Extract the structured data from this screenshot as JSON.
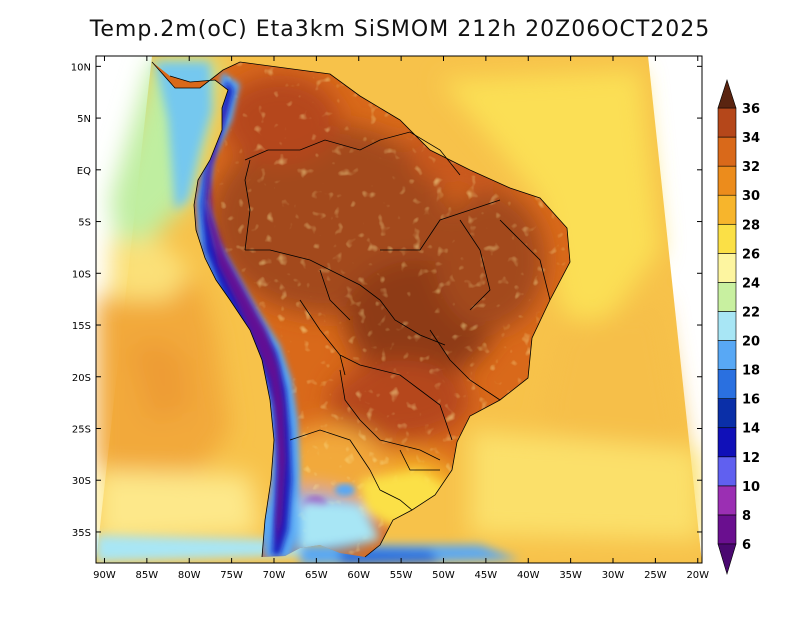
{
  "map": {
    "title": "Temp.2m(oC) Eta3km SiSMOM 212h 20Z06OCT2025",
    "variable": "2 m air temperature",
    "units": "oC",
    "lat_range": [
      -38,
      11
    ],
    "lon_range": [
      -91,
      -19.5
    ],
    "lat_ticks": [
      {
        "value": 10,
        "label": "10N"
      },
      {
        "value": 5,
        "label": "5N"
      },
      {
        "value": 0,
        "label": "EQ"
      },
      {
        "value": -5,
        "label": "5S"
      },
      {
        "value": -10,
        "label": "10S"
      },
      {
        "value": -15,
        "label": "15S"
      },
      {
        "value": -20,
        "label": "20S"
      },
      {
        "value": -25,
        "label": "25S"
      },
      {
        "value": -30,
        "label": "30S"
      },
      {
        "value": -35,
        "label": "35S"
      }
    ],
    "lon_ticks": [
      {
        "value": -90,
        "label": "90W"
      },
      {
        "value": -85,
        "label": "85W"
      },
      {
        "value": -80,
        "label": "80W"
      },
      {
        "value": -75,
        "label": "75W"
      },
      {
        "value": -70,
        "label": "70W"
      },
      {
        "value": -65,
        "label": "65W"
      },
      {
        "value": -60,
        "label": "60W"
      },
      {
        "value": -55,
        "label": "55W"
      },
      {
        "value": -50,
        "label": "50W"
      },
      {
        "value": -45,
        "label": "45W"
      },
      {
        "value": -40,
        "label": "40W"
      },
      {
        "value": -35,
        "label": "35W"
      },
      {
        "value": -30,
        "label": "30W"
      },
      {
        "value": -25,
        "label": "25W"
      },
      {
        "value": -20,
        "label": "20W"
      }
    ]
  },
  "colorbar": {
    "levels": [
      {
        "value": 6,
        "label": "6",
        "color": "#6a0f8f"
      },
      {
        "value": 8,
        "label": "8",
        "color": "#9b2fb3"
      },
      {
        "value": 10,
        "label": "10",
        "color": "#6060f0"
      },
      {
        "value": 12,
        "label": "12",
        "color": "#1010b8"
      },
      {
        "value": 14,
        "label": "14",
        "color": "#0a2fa8"
      },
      {
        "value": 16,
        "label": "16",
        "color": "#2a70e0"
      },
      {
        "value": 18,
        "label": "18",
        "color": "#58a8f5"
      },
      {
        "value": 20,
        "label": "20",
        "color": "#a8e6f5"
      },
      {
        "value": 22,
        "label": "22",
        "color": "#c8f0a0"
      },
      {
        "value": 24,
        "label": "24",
        "color": "#fdf5a0"
      },
      {
        "value": 26,
        "label": "26",
        "color": "#fbe046"
      },
      {
        "value": 28,
        "label": "28",
        "color": "#f7b52c"
      },
      {
        "value": 30,
        "label": "30",
        "color": "#ec8c1c"
      },
      {
        "value": 32,
        "label": "32",
        "color": "#d9691a"
      },
      {
        "value": 34,
        "label": "34",
        "color": "#b5471a"
      },
      {
        "value": 36,
        "label": "36",
        "color": "#7a3018"
      }
    ],
    "under_color": "#4a0870",
    "over_color": "#5a2410"
  },
  "colors": {
    "ocean_warm": "#f7c24a",
    "ocean_cool": "#f2a93a",
    "land_hot": "#a3481c",
    "border": "#000000"
  }
}
